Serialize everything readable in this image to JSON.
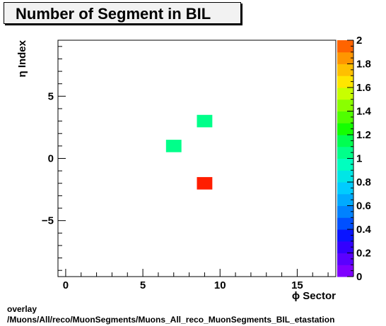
{
  "title": "Number of Segment in BIL",
  "footer": {
    "line1": "overlay",
    "line2": "/Muons/All/reco/MuonSegments/Muons_All_reco_MuonSegments_BIL_etastation"
  },
  "chart_data": {
    "type": "heatmap",
    "title": "Number of Segment in BIL",
    "xlabel": "ϕ Sector",
    "ylabel": "η Index",
    "xlim": [
      -0.5,
      17.5
    ],
    "ylim": [
      -9.5,
      9.5
    ],
    "x_ticks": [
      0,
      5,
      10,
      15
    ],
    "y_ticks": [
      -5,
      0,
      5
    ],
    "z_range": [
      0,
      2
    ],
    "z_ticks": [
      0,
      0.2,
      0.4,
      0.6,
      0.8,
      1,
      1.2,
      1.4,
      1.6,
      1.8,
      2
    ],
    "z_tick_labels": [
      "0",
      "0.2",
      "0.4",
      "0.6",
      "0.8",
      "1",
      "1.2",
      "1.4",
      "1.6",
      "1.8",
      "2"
    ],
    "x_tick_labels": [
      "0",
      "5",
      "10",
      "15"
    ],
    "y_tick_labels": [
      "−5",
      "0",
      "5"
    ],
    "cells": [
      {
        "x": 7,
        "y": 1,
        "value": 1
      },
      {
        "x": 9,
        "y": 3,
        "value": 1
      },
      {
        "x": 9,
        "y": -2,
        "value": 2
      }
    ],
    "palette": [
      "#7f00ff",
      "#5a00ff",
      "#3300ff",
      "#0a14ff",
      "#0050ff",
      "#0082ff",
      "#00aaff",
      "#00ccff",
      "#00e6e6",
      "#00ffbf",
      "#00ff8a",
      "#00ff50",
      "#14ff00",
      "#50ff00",
      "#8aff00",
      "#c8ff00",
      "#ffe600",
      "#ffc000",
      "#ff9600",
      "#ff6400",
      "#ff1e00"
    ],
    "grid": false,
    "legend": "colorbar-right"
  }
}
